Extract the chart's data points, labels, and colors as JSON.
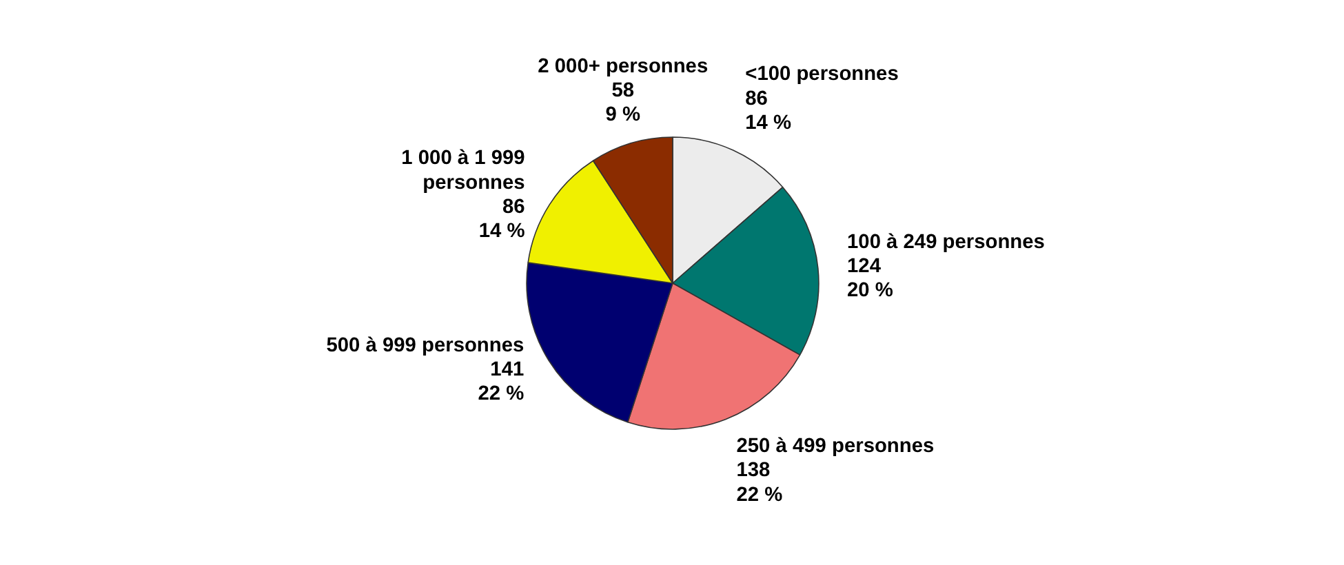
{
  "chart_data": {
    "type": "pie",
    "categories": [
      "<100 personnes",
      "100 à 249 personnes",
      "250 à 499 personnes",
      "500 à 999 personnes",
      "1 000 à 1 999 personnes",
      "2 000+ personnes"
    ],
    "values": [
      86,
      124,
      138,
      141,
      86,
      58
    ],
    "colors": [
      "#ececec",
      "#00776f",
      "#f07373",
      "#000070",
      "#f0f000",
      "#8b2c00"
    ],
    "value_labels": [
      "86\n14 %",
      "124\n20 %",
      "138\n22 %",
      "141\n22 %",
      "86\n14 %",
      "58\n9 %"
    ]
  }
}
